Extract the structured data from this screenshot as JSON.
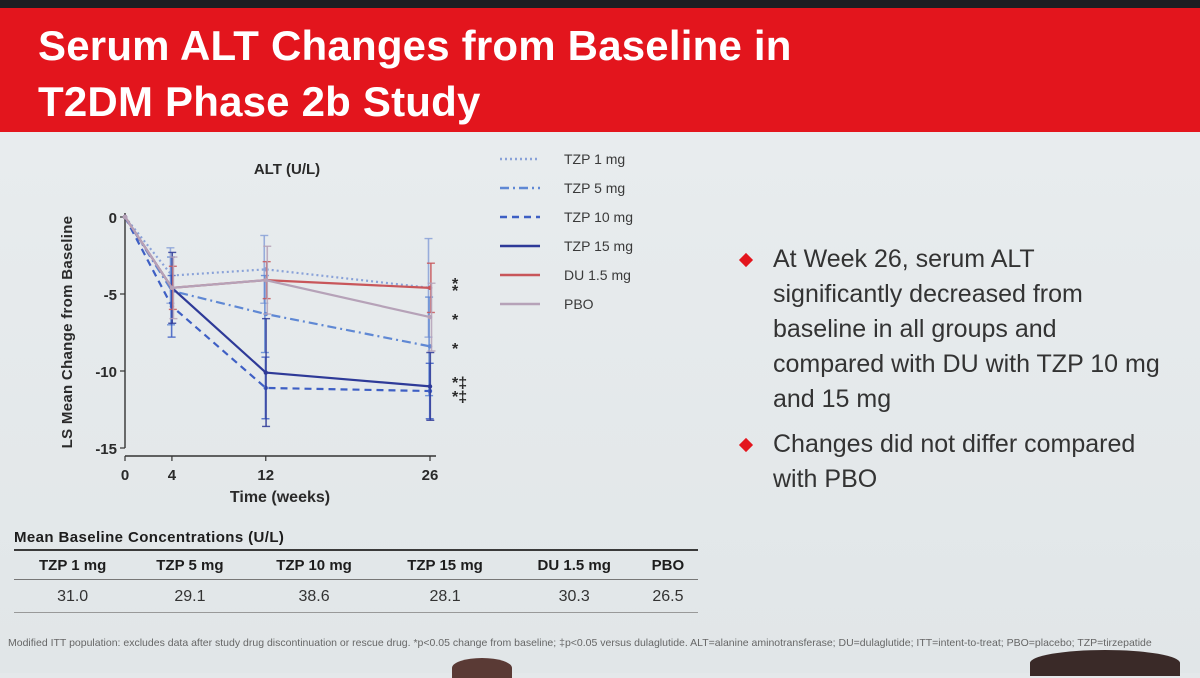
{
  "slide": {
    "title": "Serum ALT Changes from Baseline in\nT2DM Phase 2b Study"
  },
  "colors": {
    "accent": "#e3151d"
  },
  "chart_data": {
    "type": "line",
    "title": "ALT (U/L)",
    "xlabel": "Time (weeks)",
    "ylabel": "LS Mean Change from Baseline",
    "x": [
      0,
      4,
      12,
      26
    ],
    "xticks": [
      "0",
      "4",
      "12",
      "26"
    ],
    "yticks": [
      "0",
      "-5",
      "-10",
      "-15"
    ],
    "ylim": [
      -15,
      0
    ],
    "legend_position": "top-right",
    "series": [
      {
        "name": "TZP 1 mg",
        "values": [
          0,
          -3.8,
          -3.4,
          -4.6
        ],
        "errors": [
          0,
          1.8,
          2.2,
          3.2
        ],
        "color": "#8aa2d8",
        "dash": "2,3",
        "marker": "·",
        "significance": "*"
      },
      {
        "name": "TZP 5 mg",
        "values": [
          0,
          -4.8,
          -6.3,
          -8.4
        ],
        "errors": [
          0,
          2.2,
          2.5,
          3.2
        ],
        "color": "#5f88d4",
        "dash": "9,4,2,4",
        "marker": "·",
        "significance": "*"
      },
      {
        "name": "TZP 10 mg",
        "values": [
          0,
          -5.8,
          -11.1,
          -11.3
        ],
        "errors": [
          0,
          2.0,
          2.0,
          1.8
        ],
        "color": "#3e5fc4",
        "dash": "7,5",
        "marker": "·",
        "significance": "*‡"
      },
      {
        "name": "TZP 15 mg",
        "values": [
          0,
          -4.6,
          -10.1,
          -11.0
        ],
        "errors": [
          0,
          2.3,
          3.5,
          2.2
        ],
        "color": "#2e3a98",
        "dash": "",
        "marker": "·",
        "significance": "*‡"
      },
      {
        "name": "DU 1.5 mg",
        "values": [
          0,
          -4.6,
          -4.1,
          -4.6
        ],
        "errors": [
          0,
          1.4,
          1.2,
          1.6
        ],
        "color": "#c8565a",
        "dash": "",
        "marker": "·",
        "significance": "*"
      },
      {
        "name": "PBO",
        "values": [
          0,
          -4.6,
          -4.1,
          -6.5
        ],
        "errors": [
          0,
          2.0,
          2.2,
          2.2
        ],
        "color": "#b6a2b8",
        "dash": "",
        "marker": "·",
        "significance": "*"
      }
    ]
  },
  "bullets": [
    "At Week 26, serum ALT significantly decreased from baseline in all groups and compared with DU with TZP 10 mg and 15 mg",
    "Changes did not differ compared with PBO"
  ],
  "baseline_table": {
    "title": "Mean Baseline Concentrations (U/L)",
    "headers": [
      "TZP 1 mg",
      "TZP 5 mg",
      "TZP 10 mg",
      "TZP 15 mg",
      "DU 1.5 mg",
      "PBO"
    ],
    "values": [
      "31.0",
      "29.1",
      "38.6",
      "28.1",
      "30.3",
      "26.5"
    ]
  },
  "footnote": "Modified ITT population: excludes data after study drug discontinuation or rescue drug. *p<0.05 change from baseline; ‡p<0.05 versus dulaglutide. ALT=alanine aminotransferase; DU=dulaglutide; ITT=intent-to-treat; PBO=placebo; TZP=tirzepatide"
}
